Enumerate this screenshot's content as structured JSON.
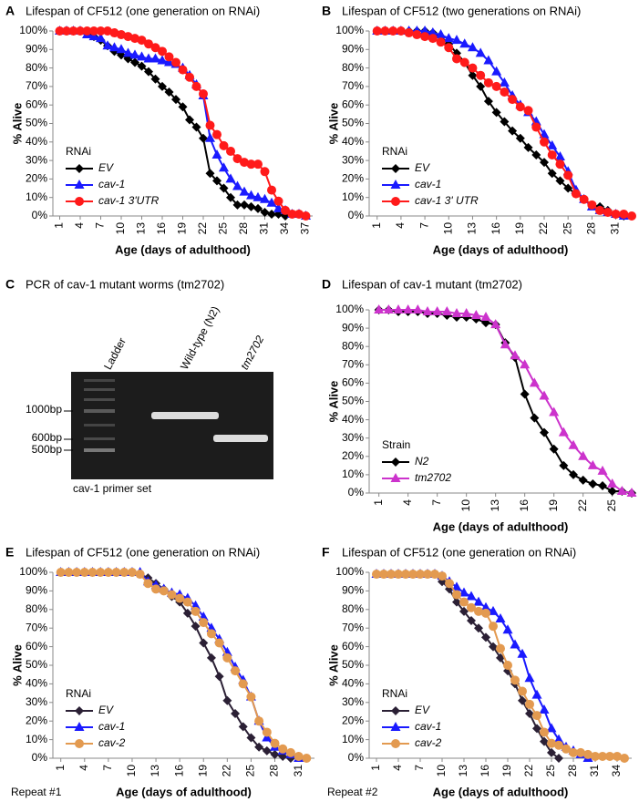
{
  "chart_data": [
    {
      "type": "line",
      "panel": "A",
      "title": "Lifespan of CF512 (one generation on RNAi)",
      "xlabel": "Age (days of adulthood)",
      "ylabel": "% Alive",
      "legend": "lower left",
      "legend_title": "RNAi",
      "x": [
        1,
        2,
        3,
        4,
        5,
        6,
        7,
        8,
        9,
        10,
        11,
        12,
        13,
        14,
        15,
        16,
        17,
        18,
        19,
        20,
        21,
        22,
        23,
        24,
        25,
        26,
        27,
        28,
        29,
        30,
        31,
        32,
        33,
        34,
        35,
        36,
        37
      ],
      "xlim": [
        0,
        38
      ],
      "xticks": [
        1,
        4,
        7,
        10,
        13,
        16,
        19,
        22,
        25,
        28,
        31,
        34,
        37
      ],
      "ylim": [
        0,
        100
      ],
      "yticks": [
        {
          "value": 0,
          "label": "0%"
        },
        {
          "value": 10,
          "label": "10%"
        },
        {
          "value": 20,
          "label": "20%"
        },
        {
          "value": 30,
          "label": "30%"
        },
        {
          "value": 40,
          "label": "40%"
        },
        {
          "value": 50,
          "label": "50%"
        },
        {
          "value": 60,
          "label": "60%"
        },
        {
          "value": 70,
          "label": "70%"
        },
        {
          "value": 80,
          "label": "80%"
        },
        {
          "value": 90,
          "label": "90%"
        },
        {
          "value": 100,
          "label": "100%"
        }
      ],
      "series": [
        {
          "name": "EV",
          "color": "#000000",
          "marker": "diamond",
          "values": [
            100,
            100,
            100,
            100,
            99,
            97,
            95,
            92,
            89,
            87,
            85,
            83,
            81,
            78,
            74,
            70,
            67,
            63,
            59,
            52,
            48,
            42,
            23,
            19,
            15,
            10,
            6,
            6,
            5,
            4,
            2,
            1,
            1,
            0,
            null,
            null,
            null
          ]
        },
        {
          "name": "cav-1",
          "color": "#1a1aff",
          "marker": "triangle",
          "values": [
            100,
            100,
            100,
            100,
            98,
            97,
            96,
            92,
            91,
            90,
            88,
            87,
            86,
            85,
            85,
            84,
            83,
            82,
            80,
            76,
            71,
            65,
            42,
            33,
            26,
            20,
            16,
            13,
            11,
            10,
            9,
            7,
            4,
            3,
            1,
            1,
            0
          ]
        },
        {
          "name": "cav-1 3'UTR",
          "color": "#ff1a1a",
          "marker": "circle",
          "values": [
            100,
            100,
            100,
            100,
            100,
            100,
            100,
            100,
            99,
            98,
            97,
            96,
            95,
            93,
            91,
            89,
            86,
            83,
            79,
            75,
            70,
            66,
            49,
            44,
            38,
            35,
            31,
            29,
            28,
            28,
            24,
            14,
            8,
            3,
            1,
            1,
            0
          ]
        }
      ]
    },
    {
      "type": "line",
      "panel": "B",
      "title": "Lifespan of CF512 (two generations on RNAi)",
      "xlabel": "Age (days of adulthood)",
      "ylabel": "% Alive",
      "legend": "lower left",
      "legend_title": "RNAi",
      "x": [
        1,
        2,
        3,
        4,
        5,
        6,
        7,
        8,
        9,
        10,
        11,
        12,
        13,
        14,
        15,
        16,
        17,
        18,
        19,
        20,
        21,
        22,
        23,
        24,
        25,
        26,
        27,
        28,
        29,
        30,
        31,
        32,
        33
      ],
      "xlim": [
        0,
        33
      ],
      "xticks": [
        1,
        4,
        7,
        10,
        13,
        16,
        19,
        22,
        25,
        28,
        31
      ],
      "ylim": [
        0,
        100
      ],
      "yticks": [
        {
          "value": 0,
          "label": "0%"
        },
        {
          "value": 10,
          "label": "10%"
        },
        {
          "value": 20,
          "label": "20%"
        },
        {
          "value": 30,
          "label": "30%"
        },
        {
          "value": 40,
          "label": "40%"
        },
        {
          "value": 50,
          "label": "50%"
        },
        {
          "value": 60,
          "label": "60%"
        },
        {
          "value": 70,
          "label": "70%"
        },
        {
          "value": 80,
          "label": "80%"
        },
        {
          "value": 90,
          "label": "90%"
        },
        {
          "value": 100,
          "label": "100%"
        }
      ],
      "series": [
        {
          "name": "EV",
          "color": "#000000",
          "marker": "diamond",
          "values": [
            100,
            100,
            100,
            100,
            100,
            100,
            100,
            99,
            97,
            93,
            88,
            83,
            76,
            70,
            62,
            56,
            51,
            46,
            42,
            37,
            33,
            29,
            23,
            19,
            15,
            12,
            9,
            6,
            5,
            3,
            1,
            0,
            null
          ]
        },
        {
          "name": "cav-1",
          "color": "#1a1aff",
          "marker": "triangle",
          "values": [
            100,
            100,
            100,
            100,
            100,
            100,
            100,
            99,
            98,
            96,
            95,
            93,
            91,
            88,
            84,
            78,
            72,
            65,
            60,
            56,
            51,
            44,
            38,
            32,
            24,
            14,
            9,
            5,
            3,
            2,
            1,
            0,
            null
          ]
        },
        {
          "name": "cav-1 3' UTR",
          "color": "#ff1a1a",
          "marker": "circle",
          "values": [
            100,
            100,
            100,
            100,
            99,
            98,
            97,
            96,
            94,
            91,
            85,
            83,
            80,
            76,
            72,
            70,
            67,
            63,
            59,
            57,
            48,
            40,
            33,
            28,
            22,
            12,
            9,
            6,
            3,
            2,
            1,
            1,
            0
          ]
        }
      ]
    },
    {
      "type": "line",
      "panel": "D",
      "title": "Lifespan of cav-1 mutant (tm2702)",
      "xlabel": "Age (days of adulthood)",
      "ylabel": "% Alive",
      "legend": "lower left",
      "legend_title": "Strain",
      "x": [
        1,
        2,
        3,
        4,
        5,
        6,
        7,
        8,
        9,
        10,
        11,
        12,
        13,
        14,
        15,
        16,
        17,
        18,
        19,
        20,
        21,
        22,
        23,
        24,
        25,
        26,
        27
      ],
      "xlim": [
        0,
        27
      ],
      "xticks": [
        1,
        4,
        7,
        10,
        13,
        16,
        19,
        22,
        25
      ],
      "ylim": [
        0,
        100
      ],
      "yticks": [
        {
          "value": 0,
          "label": "0%"
        },
        {
          "value": 10,
          "label": "10%"
        },
        {
          "value": 20,
          "label": "20%"
        },
        {
          "value": 30,
          "label": "30%"
        },
        {
          "value": 40,
          "label": "40%"
        },
        {
          "value": 50,
          "label": "50%"
        },
        {
          "value": 60,
          "label": "60%"
        },
        {
          "value": 70,
          "label": "70%"
        },
        {
          "value": 80,
          "label": "80%"
        },
        {
          "value": 90,
          "label": "90%"
        },
        {
          "value": 100,
          "label": "100%"
        }
      ],
      "series": [
        {
          "name": "N2",
          "color": "#000000",
          "marker": "diamond",
          "values": [
            100,
            100,
            99,
            99,
            99,
            98,
            98,
            97,
            96,
            96,
            95,
            93,
            92,
            82,
            74,
            54,
            41,
            33,
            24,
            15,
            10,
            7,
            5,
            4,
            1,
            1,
            0
          ]
        },
        {
          "name": "tm2702",
          "color": "#cc33cc",
          "marker": "triangle",
          "values": [
            100,
            100,
            100,
            100,
            100,
            99,
            99,
            99,
            98,
            98,
            97,
            96,
            92,
            81,
            75,
            70,
            60,
            53,
            44,
            33,
            26,
            20,
            15,
            12,
            5,
            1,
            0
          ]
        }
      ]
    },
    {
      "type": "line",
      "panel": "E",
      "title": "Lifespan of CF512 (one generation on RNAi)",
      "xlabel": "Age (days of adulthood)",
      "ylabel": "% Alive",
      "legend": "lower left",
      "legend_title": "RNAi",
      "annotation": "Repeat #1",
      "x": [
        1,
        2,
        3,
        4,
        5,
        6,
        7,
        8,
        9,
        10,
        11,
        12,
        13,
        14,
        15,
        16,
        17,
        18,
        19,
        20,
        21,
        22,
        23,
        24,
        25,
        26,
        27,
        28,
        29,
        30,
        31,
        32
      ],
      "xlim": [
        0,
        33
      ],
      "xticks": [
        1,
        4,
        7,
        10,
        13,
        16,
        19,
        22,
        25,
        28,
        31
      ],
      "ylim": [
        0,
        100
      ],
      "yticks": [
        {
          "value": 0,
          "label": "0%"
        },
        {
          "value": 10,
          "label": "10%"
        },
        {
          "value": 20,
          "label": "20%"
        },
        {
          "value": 30,
          "label": "30%"
        },
        {
          "value": 40,
          "label": "40%"
        },
        {
          "value": 50,
          "label": "50%"
        },
        {
          "value": 60,
          "label": "60%"
        },
        {
          "value": 70,
          "label": "70%"
        },
        {
          "value": 80,
          "label": "80%"
        },
        {
          "value": 90,
          "label": "90%"
        },
        {
          "value": 100,
          "label": "100%"
        }
      ],
      "series": [
        {
          "name": "EV",
          "color": "#2b2035",
          "marker": "diamond",
          "values": [
            100,
            100,
            100,
            100,
            100,
            100,
            100,
            100,
            100,
            100,
            99,
            97,
            94,
            91,
            87,
            84,
            78,
            71,
            62,
            54,
            44,
            31,
            24,
            17,
            11,
            6,
            4,
            2,
            1,
            0,
            null,
            null
          ]
        },
        {
          "name": "cav-1",
          "color": "#1a1aff",
          "marker": "triangle",
          "values": [
            100,
            100,
            100,
            100,
            100,
            100,
            100,
            100,
            100,
            100,
            100,
            95,
            93,
            91,
            89,
            88,
            86,
            82,
            76,
            70,
            64,
            57,
            49,
            42,
            33,
            20,
            11,
            6,
            4,
            2,
            0,
            null
          ]
        },
        {
          "name": "cav-2",
          "color": "#e39a50",
          "marker": "circle",
          "values": [
            100,
            100,
            100,
            100,
            100,
            100,
            100,
            100,
            100,
            100,
            99,
            94,
            91,
            90,
            88,
            86,
            84,
            79,
            73,
            67,
            62,
            54,
            47,
            40,
            33,
            20,
            14,
            8,
            5,
            3,
            1,
            0
          ]
        }
      ]
    },
    {
      "type": "line",
      "panel": "F",
      "title": "Lifespan of CF512 (one generation on RNAi)",
      "xlabel": "Age (days of adulthood)",
      "ylabel": "% Alive",
      "legend": "lower left",
      "legend_title": "RNAi",
      "annotation": "Repeat #2",
      "x": [
        1,
        2,
        3,
        4,
        5,
        6,
        7,
        8,
        9,
        10,
        11,
        12,
        13,
        14,
        15,
        16,
        17,
        18,
        19,
        20,
        21,
        22,
        23,
        24,
        25,
        26,
        27,
        28,
        29,
        30,
        31,
        32,
        33,
        34,
        35
      ],
      "xlim": [
        0,
        36
      ],
      "xticks": [
        1,
        4,
        7,
        10,
        13,
        16,
        19,
        22,
        25,
        28,
        31,
        34
      ],
      "ylim": [
        0,
        100
      ],
      "yticks": [
        {
          "value": 0,
          "label": "0%"
        },
        {
          "value": 10,
          "label": "10%"
        },
        {
          "value": 20,
          "label": "20%"
        },
        {
          "value": 30,
          "label": "30%"
        },
        {
          "value": 40,
          "label": "40%"
        },
        {
          "value": 50,
          "label": "50%"
        },
        {
          "value": 60,
          "label": "60%"
        },
        {
          "value": 70,
          "label": "70%"
        },
        {
          "value": 80,
          "label": "80%"
        },
        {
          "value": 90,
          "label": "90%"
        },
        {
          "value": 100,
          "label": "100%"
        }
      ],
      "series": [
        {
          "name": "EV",
          "color": "#2b2035",
          "marker": "diamond",
          "values": [
            99,
            99,
            99,
            99,
            99,
            99,
            99,
            99,
            99,
            95,
            91,
            84,
            79,
            74,
            70,
            65,
            60,
            54,
            47,
            40,
            31,
            24,
            16,
            9,
            3,
            0,
            null,
            null,
            null,
            null,
            null,
            null,
            null,
            null,
            null
          ]
        },
        {
          "name": "cav-1",
          "color": "#1a1aff",
          "marker": "triangle",
          "values": [
            99,
            99,
            99,
            99,
            99,
            99,
            99,
            99,
            99,
            98,
            95,
            92,
            89,
            87,
            84,
            81,
            79,
            75,
            69,
            61,
            56,
            43,
            34,
            26,
            16,
            10,
            6,
            4,
            2,
            0,
            null,
            null,
            null,
            null,
            null
          ]
        },
        {
          "name": "cav-2",
          "color": "#e39a50",
          "marker": "circle",
          "values": [
            99,
            99,
            99,
            99,
            99,
            99,
            99,
            99,
            99,
            98,
            94,
            88,
            84,
            81,
            79,
            78,
            71,
            59,
            50,
            42,
            36,
            29,
            23,
            14,
            8,
            7,
            5,
            3,
            3,
            2,
            1,
            1,
            1,
            1,
            0
          ]
        }
      ]
    }
  ],
  "gel": {
    "panel": "C",
    "title": "PCR of cav-1 mutant worms (tm2702)",
    "lanes": [
      "Ladder",
      "Wild-type (N2)",
      "tm2702"
    ],
    "markers": [
      "1000bp",
      "600bp",
      "500bp"
    ],
    "caption": "cav-1 primer set"
  }
}
